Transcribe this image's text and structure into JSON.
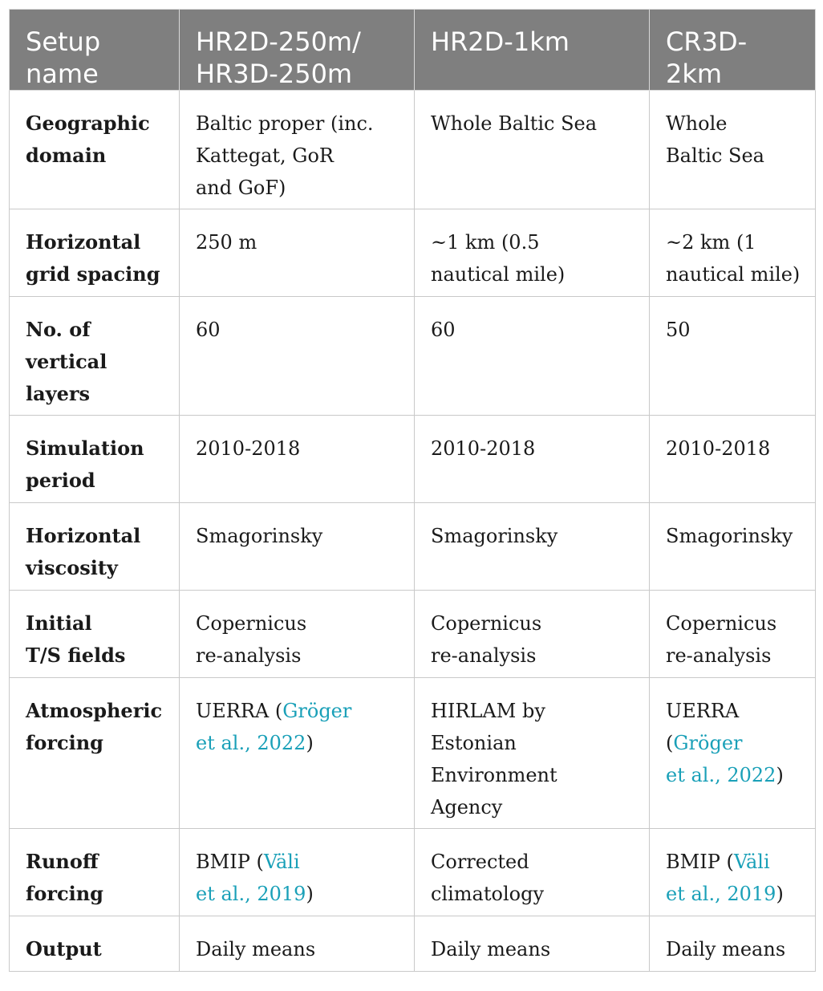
{
  "table": {
    "header": [
      [
        "Setup",
        "name"
      ],
      [
        "HR2D-250m/",
        "HR3D-250m"
      ],
      [
        "HR2D-1km"
      ],
      [
        "CR3D-",
        "2km"
      ]
    ],
    "rows": [
      {
        "label": [
          "Geographic",
          "domain"
        ],
        "c1": [
          [
            "Baltic proper (inc."
          ],
          [
            "Kattegat, GoR"
          ],
          [
            "and GoF)"
          ]
        ],
        "c2": [
          [
            "Whole Baltic Sea"
          ]
        ],
        "c3": [
          [
            "Whole"
          ],
          [
            "Baltic Sea"
          ]
        ]
      },
      {
        "label": [
          "Horizontal",
          "grid spacing"
        ],
        "c1": [
          [
            "250 m"
          ]
        ],
        "c2": [
          [
            "~1 km (0.5"
          ],
          [
            "nautical mile)"
          ]
        ],
        "c3": [
          [
            "~2 km (1"
          ],
          [
            "nautical mile)"
          ]
        ]
      },
      {
        "label": [
          "No. of",
          "vertical",
          "layers"
        ],
        "c1": [
          [
            "60"
          ]
        ],
        "c2": [
          [
            "60"
          ]
        ],
        "c3": [
          [
            "50"
          ]
        ]
      },
      {
        "label": [
          "Simulation",
          "period"
        ],
        "c1": [
          [
            "2010-2018"
          ]
        ],
        "c2": [
          [
            "2010-2018"
          ]
        ],
        "c3": [
          [
            "2010-2018"
          ]
        ]
      },
      {
        "label": [
          "Horizontal",
          "viscosity"
        ],
        "c1": [
          [
            "Smagorinsky"
          ]
        ],
        "c2": [
          [
            "Smagorinsky"
          ]
        ],
        "c3": [
          [
            "Smagorinsky"
          ]
        ]
      },
      {
        "label": [
          "Initial",
          "T/S fields"
        ],
        "c1": [
          [
            "Copernicus"
          ],
          [
            "re-analysis"
          ]
        ],
        "c2": [
          [
            "Copernicus"
          ],
          [
            "re-analysis"
          ]
        ],
        "c3": [
          [
            "Copernicus"
          ],
          [
            "re-analysis"
          ]
        ]
      },
      {
        "label": [
          "Atmospheric",
          "forcing"
        ],
        "c1": [
          [
            "UERRA (",
            "Gröger"
          ],
          [
            "",
            "et al., 2022",
            ")"
          ]
        ],
        "c2": [
          [
            "HIRLAM by"
          ],
          [
            "Estonian"
          ],
          [
            "Environment"
          ],
          [
            "Agency"
          ]
        ],
        "c3": [
          [
            "UERRA"
          ],
          [
            "(",
            "Gröger"
          ],
          [
            "",
            "et al., 2022",
            ")"
          ]
        ]
      },
      {
        "label": [
          "Runoff",
          "forcing"
        ],
        "c1": [
          [
            "BMIP (",
            "Väli"
          ],
          [
            "",
            "et al., 2019",
            ")"
          ]
        ],
        "c2": [
          [
            "Corrected"
          ],
          [
            "climatology"
          ]
        ],
        "c3": [
          [
            "BMIP (",
            "Väli"
          ],
          [
            "",
            "et al., 2019",
            ")"
          ]
        ]
      },
      {
        "label": [
          "Output"
        ],
        "c1": [
          [
            "Daily means"
          ]
        ],
        "c2": [
          [
            "Daily means"
          ]
        ],
        "c3": [
          [
            "Daily means"
          ]
        ]
      }
    ]
  },
  "colors": {
    "header_bg": "#7f7f7f",
    "header_text": "#ffffff",
    "body_text": "#1a1a1a",
    "reference_link": "#1aa0b8",
    "grid_line": "#c9c9c9"
  }
}
